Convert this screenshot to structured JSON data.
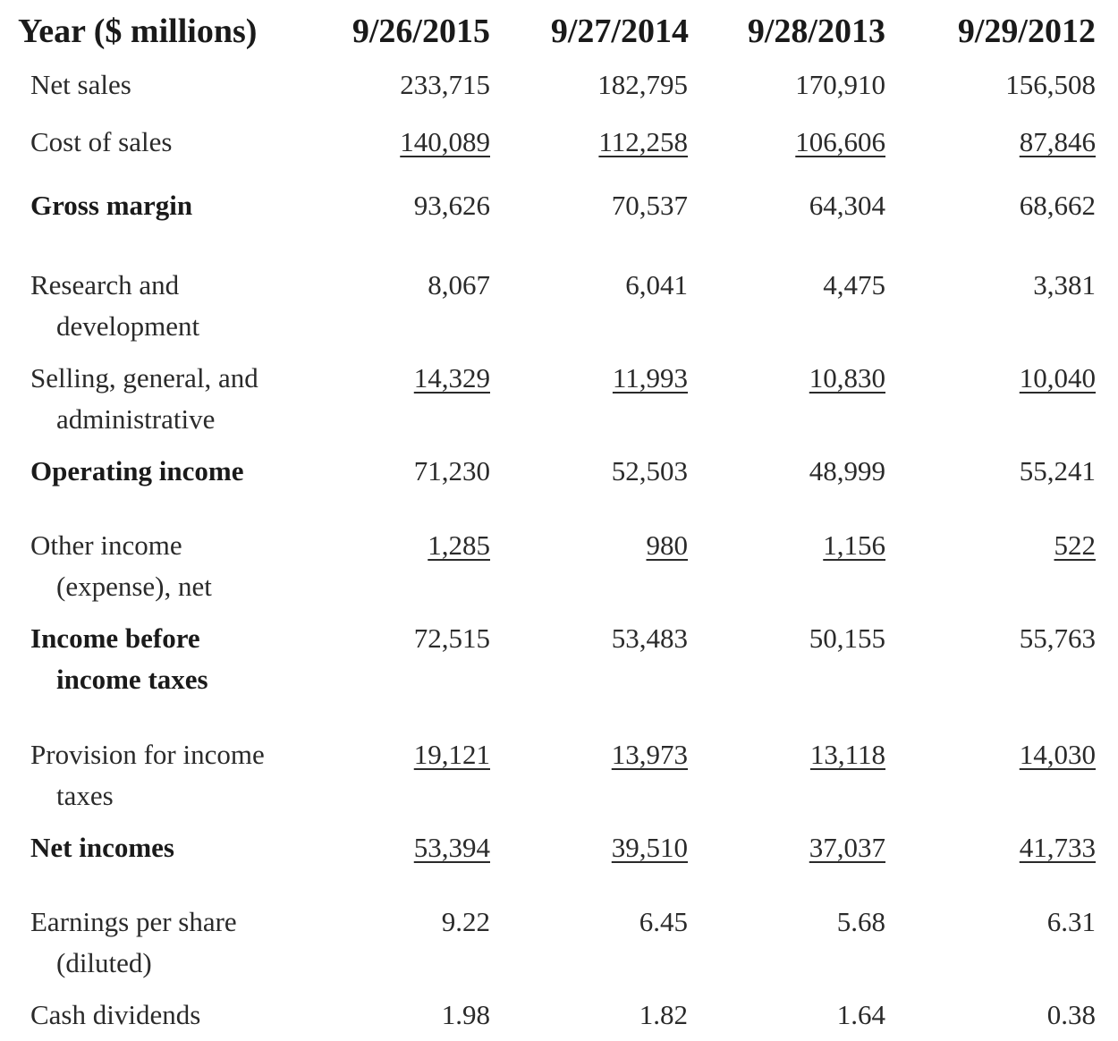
{
  "header": {
    "title": "Year ($ millions)",
    "columns": [
      "9/26/2015",
      "9/27/2014",
      "9/28/2013",
      "9/29/2012"
    ]
  },
  "rows": [
    {
      "label1": "Net sales",
      "label2": "",
      "values": [
        "233,715",
        "182,795",
        "170,910",
        "156,508"
      ]
    },
    {
      "label1": "Cost of sales",
      "label2": "",
      "values": [
        "140,089",
        "112,258",
        "106,606",
        "87,846"
      ]
    },
    {
      "label1": "Gross margin",
      "label2": "",
      "values": [
        "93,626",
        "70,537",
        "64,304",
        "68,662"
      ]
    },
    {
      "label1": "Research and",
      "label2": "development",
      "values": [
        "8,067",
        "6,041",
        "4,475",
        "3,381"
      ]
    },
    {
      "label1": "Selling, general, and",
      "label2": "administrative",
      "values": [
        "14,329",
        "11,993",
        "10,830",
        "10,040"
      ]
    },
    {
      "label1": "Operating income",
      "label2": "",
      "values": [
        "71,230",
        "52,503",
        "48,999",
        "55,241"
      ]
    },
    {
      "label1": "Other income",
      "label2": "(expense), net",
      "values": [
        "1,285",
        "980",
        "1,156",
        "522"
      ]
    },
    {
      "label1": "Income before",
      "label2": "income taxes",
      "values": [
        "72,515",
        "53,483",
        "50,155",
        "55,763"
      ]
    },
    {
      "label1": "Provision for income",
      "label2": "taxes",
      "values": [
        "19,121",
        "13,973",
        "13,118",
        "14,030"
      ]
    },
    {
      "label1": "Net incomes",
      "label2": "",
      "values": [
        "53,394",
        "39,510",
        "37,037",
        "41,733"
      ]
    },
    {
      "label1": "Earnings per share",
      "label2": "(diluted)",
      "values": [
        "9.22",
        "6.45",
        "5.68",
        "6.31"
      ]
    },
    {
      "label1": "Cash dividends",
      "label2": "",
      "values": [
        "1.98",
        "1.82",
        "1.64",
        "0.38"
      ]
    }
  ]
}
